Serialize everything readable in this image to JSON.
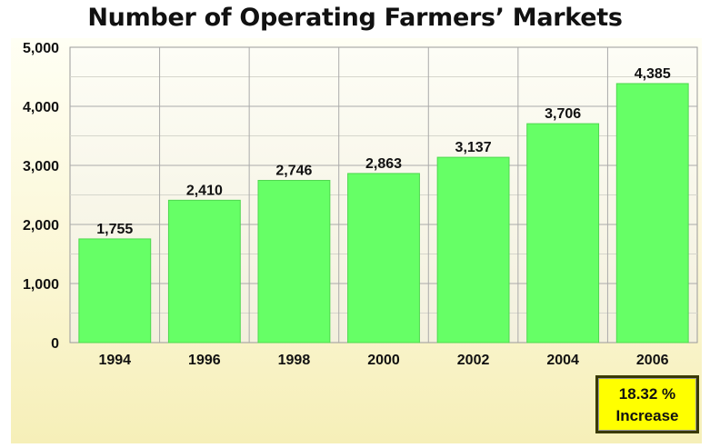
{
  "chart_data": {
    "type": "bar",
    "title": "Number of Operating Farmers’ Markets",
    "categories": [
      "1994",
      "1996",
      "1998",
      "2000",
      "2002",
      "2004",
      "2006"
    ],
    "values": [
      1755,
      2410,
      2746,
      2863,
      3137,
      3706,
      4385
    ],
    "value_labels": [
      "1,755",
      "2,410",
      "2,746",
      "2,863",
      "3,137",
      "3,706",
      "4,385"
    ],
    "yticks": [
      0,
      1000,
      2000,
      3000,
      4000,
      5000
    ],
    "ytick_labels": [
      "0",
      "1,000",
      "2,000",
      "3,000",
      "4,000",
      "5,000"
    ],
    "ylim": [
      0,
      5000
    ],
    "xlabel": "",
    "ylabel": "",
    "grid": true,
    "bar_color": "#66ff66",
    "annotation": {
      "line1": "18.32 %",
      "line2": "Increase"
    }
  }
}
